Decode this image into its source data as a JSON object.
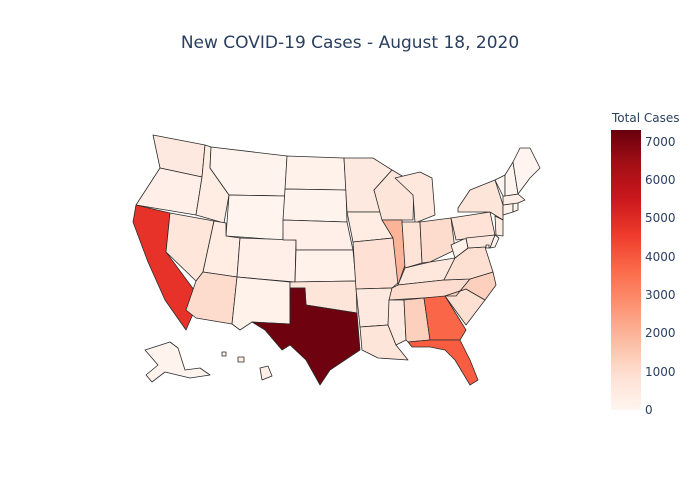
{
  "title": "New COVID-19 Cases - August 18, 2020",
  "colorbar": {
    "title": "Total Cases",
    "ticks": [
      "0",
      "1000",
      "2000",
      "3000",
      "4000",
      "5000",
      "6000",
      "7000"
    ],
    "min": 0,
    "max": 7300,
    "colorscale": "Reds"
  },
  "chart_data": {
    "type": "choropleth",
    "title": "New COVID-19 Cases - August 18, 2020",
    "colorbar_title": "Total Cases",
    "range": [
      0,
      7300
    ],
    "states": {
      "WA": 500,
      "OR": 250,
      "CA": 4800,
      "NV": 650,
      "ID": 400,
      "MT": 100,
      "WY": 50,
      "UT": 350,
      "AZ": 1000,
      "CO": 250,
      "NM": 150,
      "ND": 150,
      "SD": 100,
      "NE": 250,
      "KS": 150,
      "OK": 700,
      "TX": 7200,
      "MN": 500,
      "IA": 400,
      "MO": 850,
      "AR": 500,
      "LA": 700,
      "WI": 700,
      "IL": 2000,
      "MS": 500,
      "MI": 600,
      "IN": 800,
      "KY": 600,
      "TN": 1000,
      "AL": 1300,
      "OH": 1000,
      "GA": 3700,
      "FL": 3900,
      "SC": 900,
      "NC": 1300,
      "VA": 900,
      "WV": 150,
      "PA": 800,
      "NY": 700,
      "MD": 600,
      "DE": 80,
      "NJ": 400,
      "CT": 120,
      "RI": 80,
      "MA": 300,
      "VT": 10,
      "NH": 30,
      "ME": 30,
      "AK": 80,
      "HI": 300,
      "DC": 80
    }
  }
}
